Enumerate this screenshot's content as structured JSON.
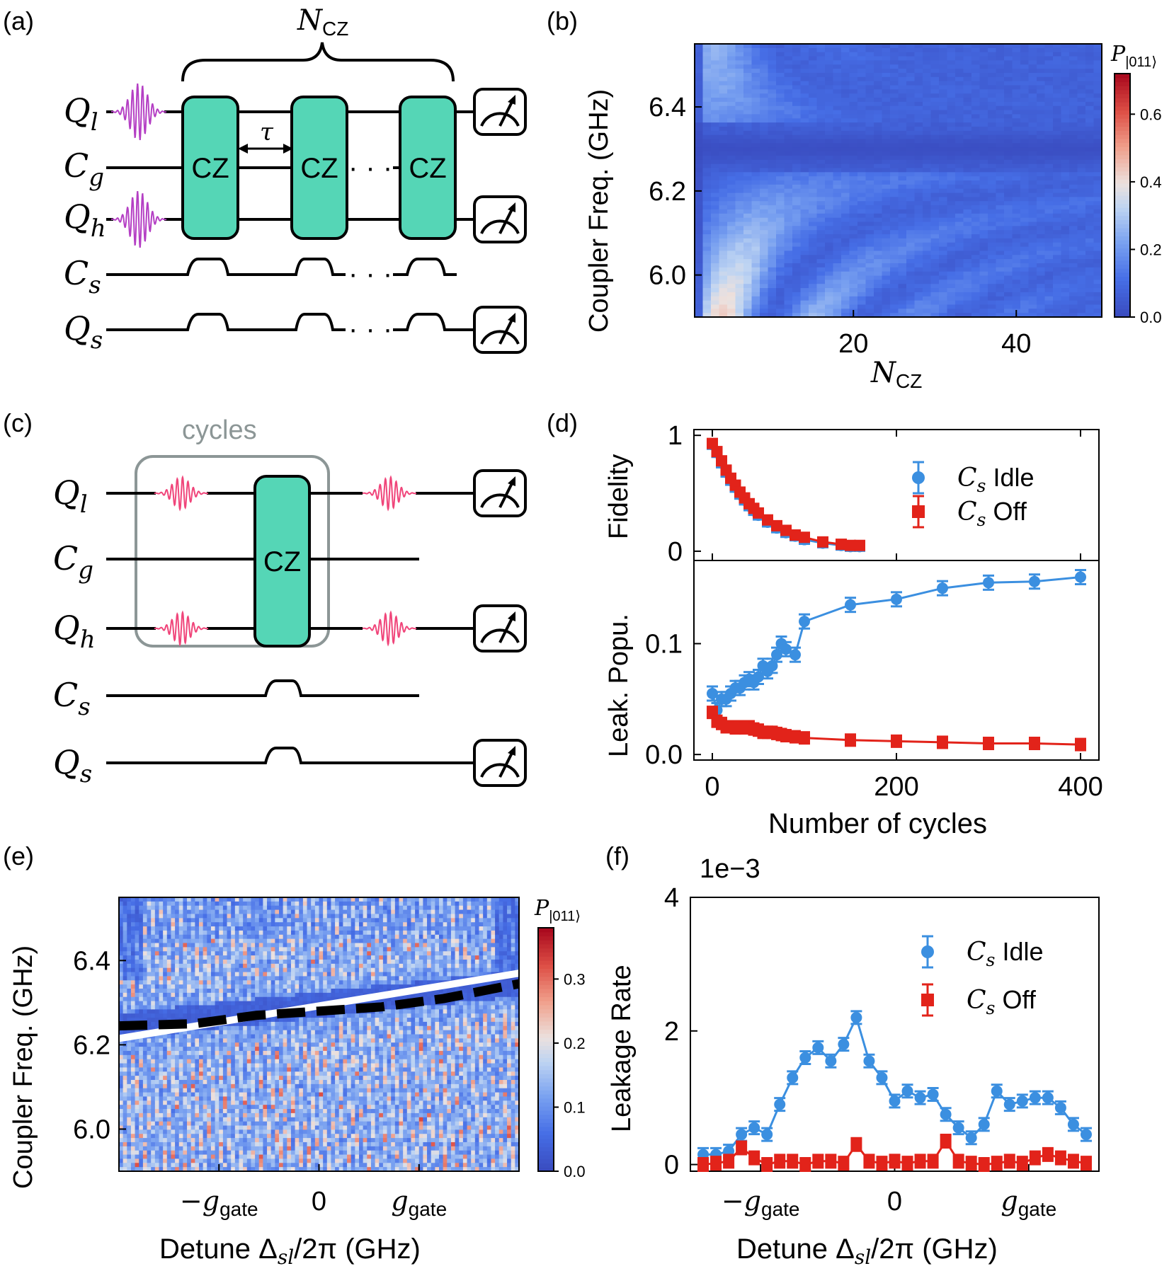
{
  "figure": {
    "panel_labels": [
      "(a)",
      "(b)",
      "(c)",
      "(d)",
      "(e)",
      "(f)"
    ]
  },
  "panel_a": {
    "n_label": "N",
    "n_sub": "CZ",
    "tau": "τ",
    "gate": "CZ",
    "ellipsis": "· · ·",
    "rows": [
      {
        "sym": "Q",
        "sub": "l"
      },
      {
        "sym": "C",
        "sub": "g"
      },
      {
        "sym": "Q",
        "sub": "h"
      },
      {
        "sym": "C",
        "sub": "s"
      },
      {
        "sym": "Q",
        "sub": "s"
      }
    ],
    "colors": {
      "gate": "#55D6B6",
      "pulse": "#B43FC4"
    }
  },
  "panel_c": {
    "box_label": "cycles",
    "gate": "CZ",
    "rows": [
      {
        "sym": "Q",
        "sub": "l"
      },
      {
        "sym": "C",
        "sub": "g"
      },
      {
        "sym": "Q",
        "sub": "h"
      },
      {
        "sym": "C",
        "sub": "s"
      },
      {
        "sym": "Q",
        "sub": "s"
      }
    ],
    "colors": {
      "gate": "#55D6B6",
      "pulse": "#F0457A",
      "box": "#8C9696"
    }
  },
  "chart_data": [
    {
      "id": "b",
      "type": "heatmap",
      "ylabel": "Coupler Freq. (GHz)",
      "xlabel_main": "N",
      "xlabel_sub": "CZ",
      "x_range": [
        0.5,
        50.5
      ],
      "y_range": [
        5.9,
        6.55
      ],
      "xticks": [
        20,
        40
      ],
      "yticks": [
        6.0,
        6.2,
        6.4
      ],
      "ytick_labels": [
        "6.0",
        "6.2",
        "6.4"
      ],
      "colorbar": {
        "label_main": "P",
        "label_sub": "|011⟩",
        "range": [
          0,
          0.72
        ],
        "ticks": [
          0.0,
          0.2,
          0.4,
          0.6
        ],
        "tick_labels": [
          "0.0",
          "0.2",
          "0.4",
          "0.6"
        ]
      }
    },
    {
      "id": "d",
      "type": "scatter",
      "xlabel": "Number of cycles",
      "x_range": [
        -20,
        420
      ],
      "xticks": [
        0,
        200,
        400
      ],
      "top": {
        "ylabel": "Fidelity",
        "y_range": [
          -0.08,
          1.05
        ],
        "yticks": [
          0,
          1
        ],
        "series": [
          {
            "name": "Cs Idle",
            "color": "#3B8FE0",
            "x": [
              0,
              5,
              10,
              15,
              20,
              25,
              30,
              35,
              40,
              45,
              50,
              60,
              70,
              80,
              90,
              100,
              120,
              140,
              150,
              160
            ],
            "y": [
              0.92,
              0.85,
              0.76,
              0.68,
              0.61,
              0.55,
              0.49,
              0.44,
              0.39,
              0.35,
              0.31,
              0.25,
              0.2,
              0.16,
              0.13,
              0.1,
              0.07,
              0.05,
              0.04,
              0.04
            ]
          },
          {
            "name": "Cs Off",
            "color": "#E2231A",
            "x": [
              0,
              5,
              10,
              15,
              20,
              25,
              30,
              35,
              40,
              45,
              50,
              60,
              70,
              80,
              90,
              100,
              120,
              140,
              150,
              160
            ],
            "y": [
              0.93,
              0.86,
              0.78,
              0.7,
              0.63,
              0.57,
              0.51,
              0.46,
              0.41,
              0.37,
              0.33,
              0.27,
              0.22,
              0.18,
              0.14,
              0.12,
              0.08,
              0.06,
              0.05,
              0.05
            ]
          }
        ]
      },
      "bottom": {
        "ylabel": "Leak. Popu.",
        "y_range": [
          -0.005,
          0.175
        ],
        "yticks": [
          0.0,
          0.1
        ],
        "ytick_labels": [
          "0.0",
          "0.1"
        ],
        "series": [
          {
            "name": "Cs Idle",
            "color": "#3B8FE0",
            "x": [
              0,
              5,
              10,
              15,
              20,
              25,
              30,
              35,
              40,
              45,
              50,
              55,
              60,
              65,
              70,
              75,
              80,
              90,
              100,
              150,
              200,
              250,
              300,
              350,
              400
            ],
            "y": [
              0.055,
              0.04,
              0.05,
              0.05,
              0.055,
              0.06,
              0.06,
              0.065,
              0.068,
              0.065,
              0.07,
              0.08,
              0.075,
              0.08,
              0.09,
              0.1,
              0.095,
              0.09,
              0.12,
              0.135,
              0.14,
              0.15,
              0.155,
              0.156,
              0.16
            ]
          },
          {
            "name": "Cs Off",
            "color": "#E2231A",
            "x": [
              0,
              5,
              10,
              15,
              20,
              25,
              30,
              35,
              40,
              45,
              50,
              55,
              60,
              65,
              70,
              75,
              80,
              90,
              100,
              150,
              200,
              250,
              300,
              350,
              400
            ],
            "y": [
              0.038,
              0.03,
              0.028,
              0.025,
              0.025,
              0.024,
              0.025,
              0.024,
              0.025,
              0.023,
              0.022,
              0.02,
              0.02,
              0.02,
              0.019,
              0.018,
              0.017,
              0.016,
              0.015,
              0.013,
              0.012,
              0.011,
              0.01,
              0.01,
              0.009
            ]
          }
        ]
      },
      "legend": {
        "position": "top-right",
        "entries": [
          {
            "sym": "C",
            "sub": "s",
            "text": "Idle"
          },
          {
            "sym": "C",
            "sub": "s",
            "text": "Off"
          }
        ]
      }
    },
    {
      "id": "e",
      "type": "heatmap",
      "ylabel": "Coupler Freq. (GHz)",
      "xlabel": "Detune Δ",
      "xlabel_sub": "sl",
      "xlabel_rest": "/2π (GHz)",
      "x_range": [
        -1.6,
        1.6
      ],
      "y_range": [
        5.9,
        6.55
      ],
      "xtick_values": [
        -0.8,
        0,
        0.8
      ],
      "xtick_labels": [
        {
          "main": "−g",
          "sub": "gate"
        },
        {
          "main": "0",
          "sub": ""
        },
        {
          "main": "g",
          "sub": "gate"
        }
      ],
      "yticks": [
        6.0,
        6.2,
        6.4
      ],
      "ytick_labels": [
        "6.0",
        "6.2",
        "6.4"
      ],
      "white_line": {
        "x": [
          -1.6,
          1.6
        ],
        "y": [
          6.215,
          6.37
        ]
      },
      "black_dashed": {
        "x": [
          -1.6,
          -1.0,
          -0.5,
          0.0,
          0.5,
          1.0,
          1.6
        ],
        "y": [
          6.245,
          6.25,
          6.27,
          6.28,
          6.29,
          6.31,
          6.345
        ]
      },
      "colorbar": {
        "label_main": "P",
        "label_sub": "|011⟩",
        "range": [
          0,
          0.38
        ],
        "ticks": [
          0.0,
          0.1,
          0.2,
          0.3
        ],
        "tick_labels": [
          "0.0",
          "0.1",
          "0.2",
          "0.3"
        ]
      }
    },
    {
      "id": "f",
      "type": "scatter",
      "ylabel": "Leakage Rate",
      "y_multiplier": "1e−3",
      "xlabel": "Detune Δ",
      "xlabel_sub": "sl",
      "xlabel_rest": "/2π (GHz)",
      "x_range": [
        -1.6,
        1.6
      ],
      "y_range": [
        -0.1,
        4.0
      ],
      "yticks": [
        0,
        2,
        4
      ],
      "xtick_values": [
        -1.05,
        0,
        1.05
      ],
      "xtick_labels": [
        {
          "main": "−g",
          "sub": "gate"
        },
        {
          "main": "0",
          "sub": ""
        },
        {
          "main": "g",
          "sub": "gate"
        }
      ],
      "series": [
        {
          "name": "Cs Idle",
          "color": "#3B8FE0",
          "x": [
            -1.5,
            -1.4,
            -1.3,
            -1.2,
            -1.1,
            -1.0,
            -0.9,
            -0.8,
            -0.7,
            -0.6,
            -0.5,
            -0.4,
            -0.3,
            -0.2,
            -0.1,
            0.0,
            0.1,
            0.2,
            0.3,
            0.4,
            0.5,
            0.6,
            0.7,
            0.8,
            0.9,
            1.0,
            1.1,
            1.2,
            1.3,
            1.4,
            1.5
          ],
          "y": [
            0.15,
            0.15,
            0.2,
            0.45,
            0.55,
            0.45,
            0.9,
            1.3,
            1.6,
            1.75,
            1.55,
            1.8,
            2.2,
            1.55,
            1.3,
            0.95,
            1.1,
            1.0,
            1.05,
            0.75,
            0.55,
            0.4,
            0.6,
            1.1,
            0.9,
            0.95,
            1.0,
            1.0,
            0.85,
            0.6,
            0.45
          ]
        },
        {
          "name": "Cs Off",
          "color": "#E2231A",
          "x": [
            -1.5,
            -1.4,
            -1.3,
            -1.2,
            -1.1,
            -1.0,
            -0.9,
            -0.8,
            -0.7,
            -0.6,
            -0.5,
            -0.4,
            -0.3,
            -0.2,
            -0.1,
            0.0,
            0.1,
            0.2,
            0.3,
            0.4,
            0.5,
            0.6,
            0.7,
            0.8,
            0.9,
            1.0,
            1.1,
            1.2,
            1.3,
            1.4,
            1.5
          ],
          "y": [
            0.0,
            0.02,
            0.05,
            0.25,
            0.1,
            0.0,
            0.05,
            0.05,
            0.0,
            0.05,
            0.05,
            0.02,
            0.3,
            0.05,
            0.02,
            0.05,
            0.02,
            0.05,
            0.05,
            0.35,
            0.05,
            0.02,
            0.0,
            0.02,
            0.05,
            0.02,
            0.1,
            0.15,
            0.1,
            0.05,
            0.02
          ]
        }
      ],
      "legend": {
        "position": "top-right",
        "entries": [
          {
            "sym": "C",
            "sub": "s",
            "text": "Idle"
          },
          {
            "sym": "C",
            "sub": "s",
            "text": "Off"
          }
        ]
      }
    }
  ]
}
